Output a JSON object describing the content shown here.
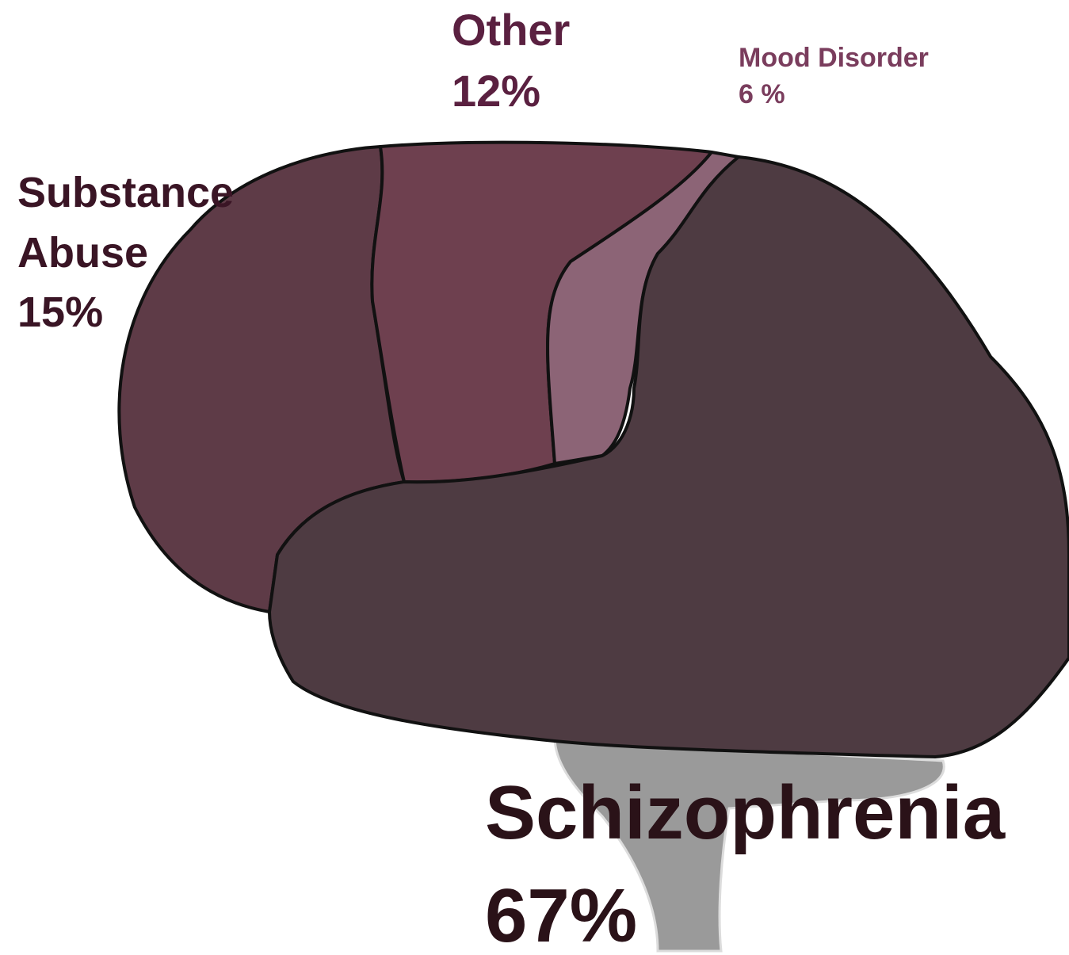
{
  "chart_data": {
    "type": "brain",
    "categories": [
      "Substance Abuse",
      "Other",
      "Mood Disorder",
      "Schizophrenia"
    ],
    "values": [
      15,
      12,
      6,
      67
    ],
    "value_labels": [
      "15%",
      "12%",
      "6 %",
      "67%"
    ],
    "colors": [
      "#5e3b47",
      "#6e404f",
      "#8c6476",
      "#4e3b42"
    ]
  }
}
